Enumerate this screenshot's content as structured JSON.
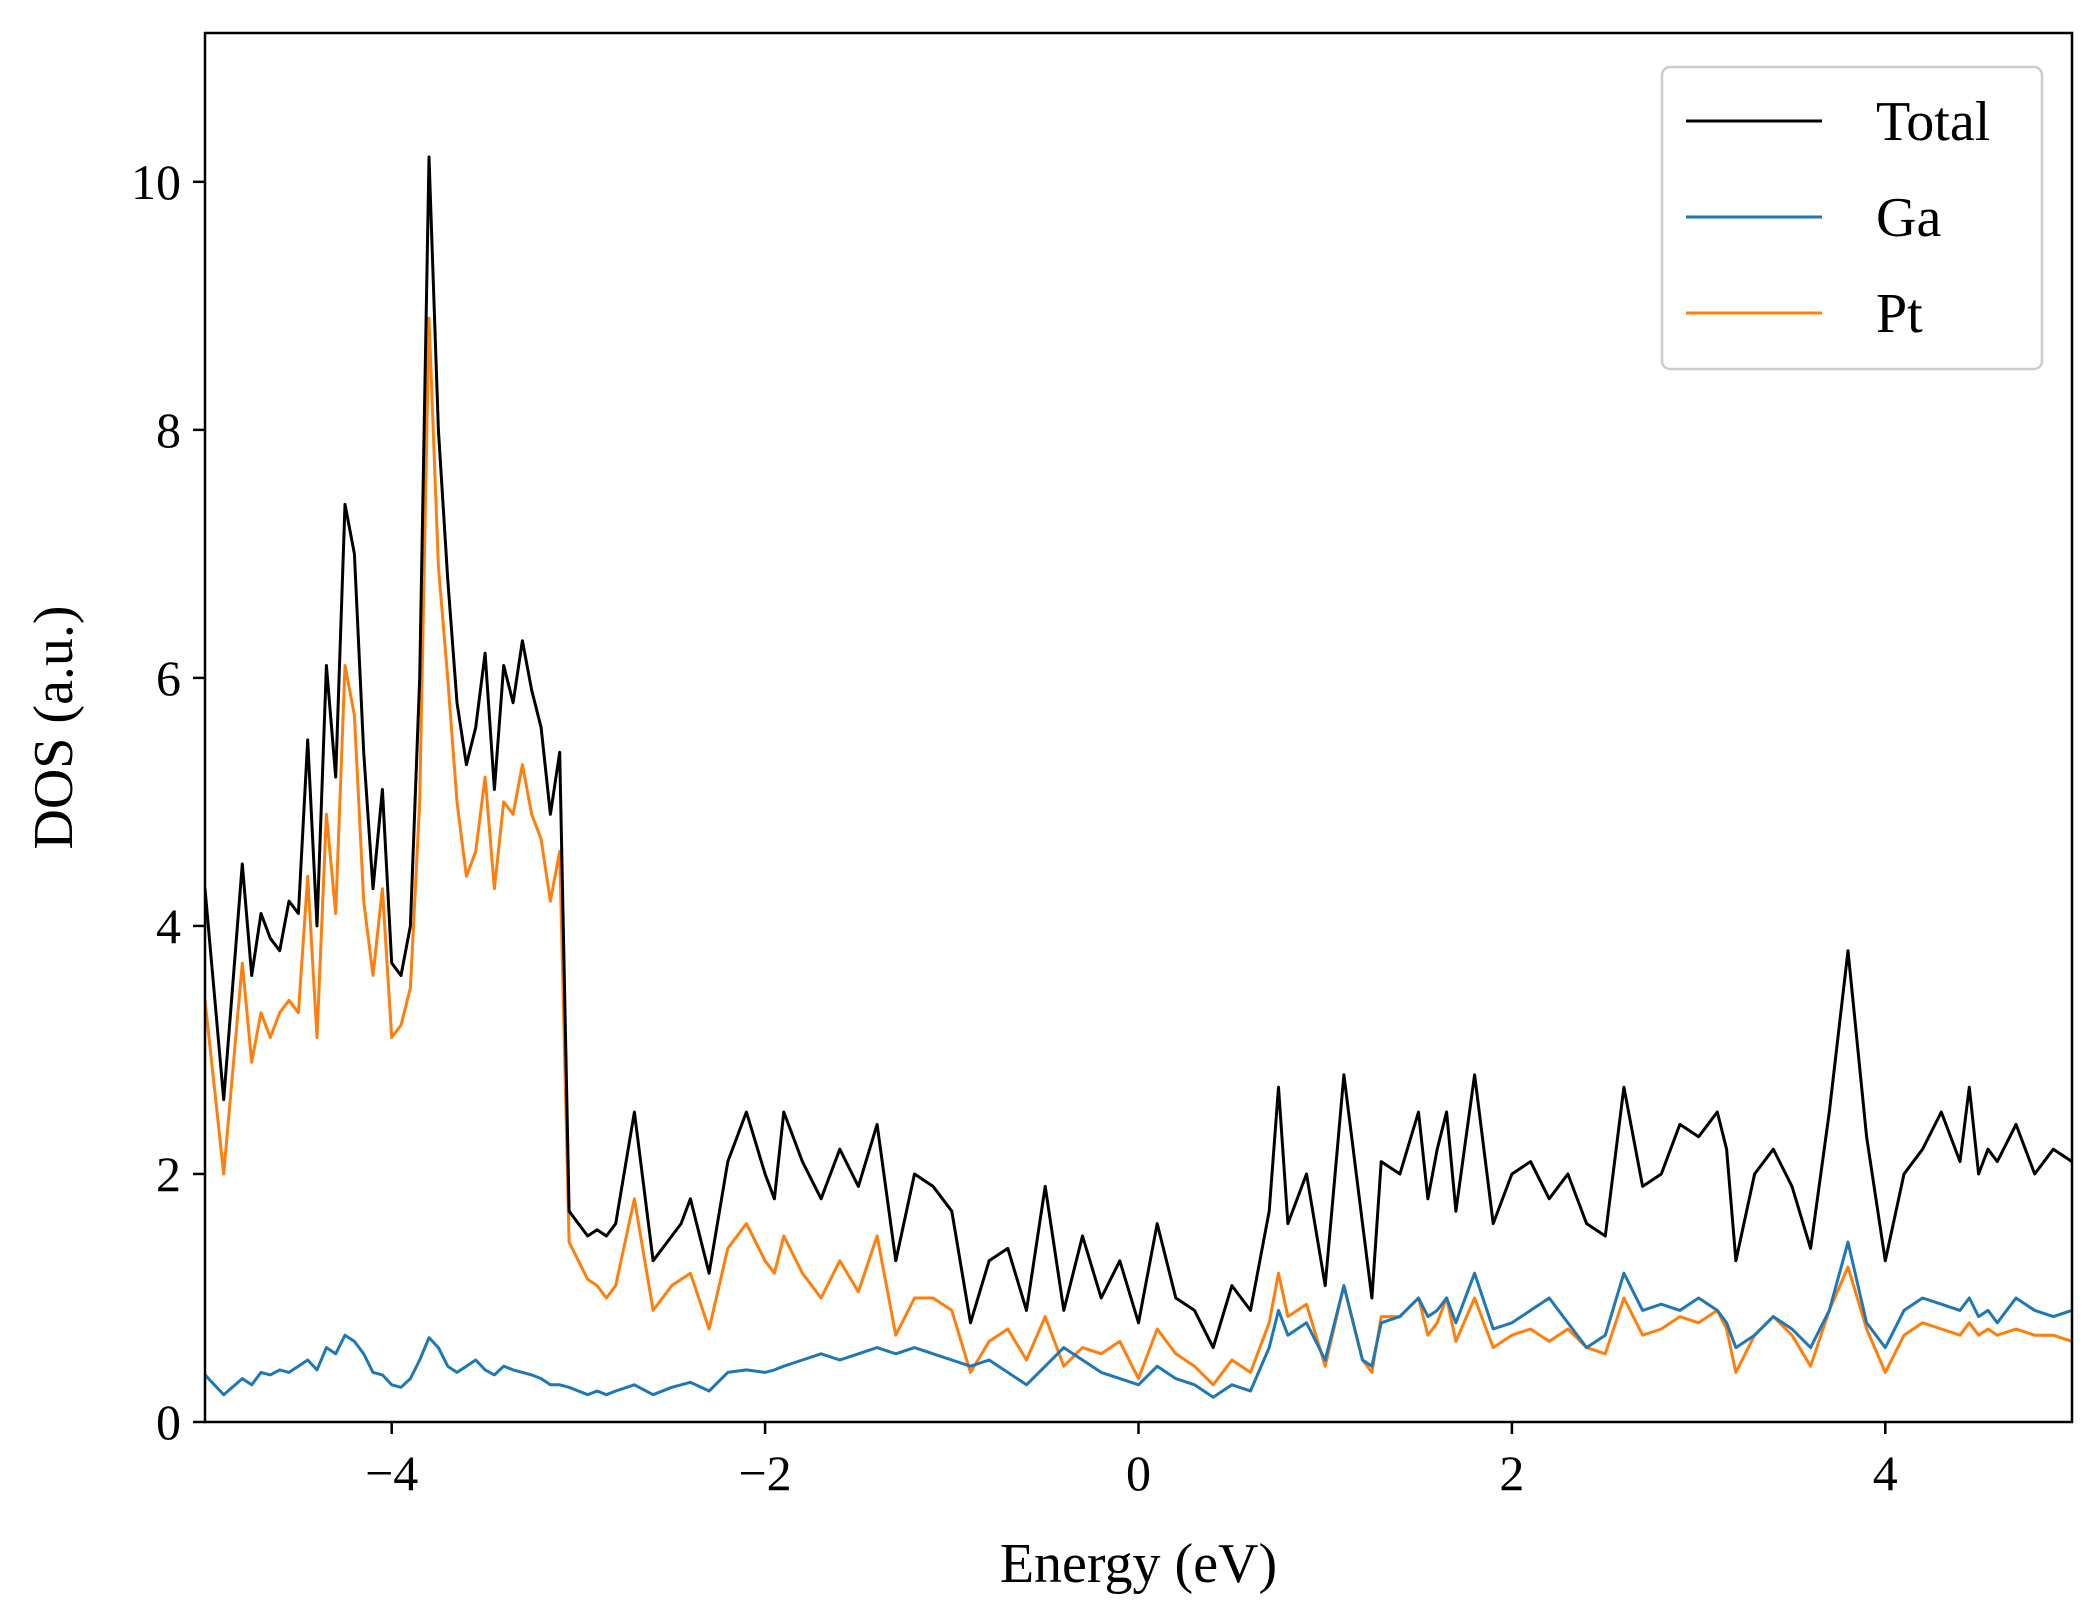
{
  "chart_data": {
    "type": "line",
    "title": "",
    "xlabel": "Energy (eV)",
    "ylabel": "DOS (a.u.)",
    "xlim": [
      -5,
      5
    ],
    "ylim": [
      0,
      11.2
    ],
    "xticks": [
      -4,
      -2,
      0,
      2,
      4
    ],
    "xtick_labels": [
      "−4",
      "−2",
      "0",
      "2",
      "4"
    ],
    "yticks": [
      0,
      2,
      4,
      6,
      8,
      10
    ],
    "ytick_labels": [
      "0",
      "2",
      "4",
      "6",
      "8",
      "10"
    ],
    "grid": false,
    "legend_position": "top-right",
    "x": [
      -5.0,
      -4.9,
      -4.8,
      -4.75,
      -4.7,
      -4.65,
      -4.6,
      -4.55,
      -4.5,
      -4.45,
      -4.4,
      -4.35,
      -4.3,
      -4.25,
      -4.2,
      -4.15,
      -4.1,
      -4.05,
      -4.0,
      -3.95,
      -3.9,
      -3.85,
      -3.8,
      -3.75,
      -3.7,
      -3.65,
      -3.6,
      -3.55,
      -3.5,
      -3.45,
      -3.4,
      -3.35,
      -3.3,
      -3.25,
      -3.2,
      -3.15,
      -3.1,
      -3.05,
      -3.0,
      -2.95,
      -2.9,
      -2.85,
      -2.8,
      -2.7,
      -2.6,
      -2.5,
      -2.45,
      -2.4,
      -2.3,
      -2.2,
      -2.1,
      -2.0,
      -1.95,
      -1.9,
      -1.8,
      -1.7,
      -1.6,
      -1.5,
      -1.4,
      -1.3,
      -1.2,
      -1.1,
      -1.0,
      -0.9,
      -0.8,
      -0.7,
      -0.6,
      -0.5,
      -0.4,
      -0.3,
      -0.2,
      -0.1,
      0.0,
      0.1,
      0.2,
      0.3,
      0.4,
      0.5,
      0.6,
      0.7,
      0.75,
      0.8,
      0.9,
      1.0,
      1.1,
      1.2,
      1.25,
      1.3,
      1.4,
      1.5,
      1.55,
      1.6,
      1.65,
      1.7,
      1.8,
      1.9,
      2.0,
      2.1,
      2.2,
      2.3,
      2.4,
      2.5,
      2.6,
      2.7,
      2.8,
      2.9,
      3.0,
      3.1,
      3.15,
      3.2,
      3.3,
      3.4,
      3.5,
      3.6,
      3.7,
      3.8,
      3.9,
      4.0,
      4.1,
      4.2,
      4.3,
      4.4,
      4.45,
      4.5,
      4.55,
      4.6,
      4.7,
      4.8,
      4.9,
      5.0
    ],
    "series": [
      {
        "name": "Total",
        "color": "#000000",
        "values": [
          4.3,
          2.6,
          4.5,
          3.6,
          4.1,
          3.9,
          3.8,
          4.2,
          4.1,
          5.5,
          4.0,
          6.1,
          5.2,
          7.4,
          7.0,
          5.4,
          4.3,
          5.1,
          3.7,
          3.6,
          4.0,
          6.0,
          10.2,
          8.0,
          6.8,
          5.8,
          5.3,
          5.6,
          6.2,
          5.1,
          6.1,
          5.8,
          6.3,
          5.9,
          5.6,
          4.9,
          5.4,
          1.7,
          1.6,
          1.5,
          1.55,
          1.5,
          1.6,
          2.5,
          1.3,
          1.5,
          1.6,
          1.8,
          1.2,
          2.1,
          2.5,
          2.0,
          1.8,
          2.5,
          2.1,
          1.8,
          2.2,
          1.9,
          2.4,
          1.3,
          2.0,
          1.9,
          1.7,
          0.8,
          1.3,
          1.4,
          0.9,
          1.9,
          0.9,
          1.5,
          1.0,
          1.3,
          0.8,
          1.6,
          1.0,
          0.9,
          0.6,
          1.1,
          0.9,
          1.7,
          2.7,
          1.6,
          2.0,
          1.1,
          2.8,
          1.6,
          1.0,
          2.1,
          2.0,
          2.5,
          1.8,
          2.2,
          2.5,
          1.7,
          2.8,
          1.6,
          2.0,
          2.1,
          1.8,
          2.0,
          1.6,
          1.5,
          2.7,
          1.9,
          2.0,
          2.4,
          2.3,
          2.5,
          2.2,
          1.3,
          2.0,
          2.2,
          1.9,
          1.4,
          2.5,
          3.8,
          2.3,
          1.3,
          2.0,
          2.2,
          2.5,
          2.1,
          2.7,
          2.0,
          2.2,
          2.1,
          2.4,
          2.0,
          2.2,
          2.1
        ]
      },
      {
        "name": "Ga",
        "color": "#1f77b4",
        "values": [
          0.38,
          0.22,
          0.35,
          0.3,
          0.4,
          0.38,
          0.42,
          0.4,
          0.45,
          0.5,
          0.42,
          0.6,
          0.55,
          0.7,
          0.65,
          0.55,
          0.4,
          0.38,
          0.3,
          0.28,
          0.35,
          0.5,
          0.68,
          0.6,
          0.45,
          0.4,
          0.45,
          0.5,
          0.42,
          0.38,
          0.45,
          0.42,
          0.4,
          0.38,
          0.35,
          0.3,
          0.3,
          0.28,
          0.25,
          0.22,
          0.25,
          0.22,
          0.25,
          0.3,
          0.22,
          0.28,
          0.3,
          0.32,
          0.25,
          0.4,
          0.42,
          0.4,
          0.42,
          0.45,
          0.5,
          0.55,
          0.5,
          0.55,
          0.6,
          0.55,
          0.6,
          0.55,
          0.5,
          0.45,
          0.5,
          0.4,
          0.3,
          0.45,
          0.6,
          0.5,
          0.4,
          0.35,
          0.3,
          0.45,
          0.35,
          0.3,
          0.2,
          0.3,
          0.25,
          0.6,
          0.9,
          0.7,
          0.8,
          0.5,
          1.1,
          0.5,
          0.45,
          0.8,
          0.85,
          1.0,
          0.85,
          0.9,
          1.0,
          0.8,
          1.2,
          0.75,
          0.8,
          0.9,
          1.0,
          0.8,
          0.6,
          0.7,
          1.2,
          0.9,
          0.95,
          0.9,
          1.0,
          0.9,
          0.8,
          0.6,
          0.7,
          0.85,
          0.75,
          0.6,
          0.9,
          1.45,
          0.8,
          0.6,
          0.9,
          1.0,
          0.95,
          0.9,
          1.0,
          0.85,
          0.9,
          0.8,
          1.0,
          0.9,
          0.85,
          0.9
        ]
      },
      {
        "name": "Pt",
        "color": "#ff7f0e",
        "values": [
          3.4,
          2.0,
          3.7,
          2.9,
          3.3,
          3.1,
          3.3,
          3.4,
          3.3,
          4.4,
          3.1,
          4.9,
          4.1,
          6.1,
          5.7,
          4.2,
          3.6,
          4.3,
          3.1,
          3.2,
          3.5,
          5.0,
          8.9,
          6.9,
          6.0,
          5.0,
          4.4,
          4.6,
          5.2,
          4.3,
          5.0,
          4.9,
          5.3,
          4.9,
          4.7,
          4.2,
          4.6,
          1.45,
          1.3,
          1.15,
          1.1,
          1.0,
          1.1,
          1.8,
          0.9,
          1.1,
          1.15,
          1.2,
          0.75,
          1.4,
          1.6,
          1.3,
          1.2,
          1.5,
          1.2,
          1.0,
          1.3,
          1.05,
          1.5,
          0.7,
          1.0,
          1.0,
          0.9,
          0.4,
          0.65,
          0.75,
          0.5,
          0.85,
          0.45,
          0.6,
          0.55,
          0.65,
          0.35,
          0.75,
          0.55,
          0.45,
          0.3,
          0.5,
          0.4,
          0.8,
          1.2,
          0.85,
          0.95,
          0.45,
          1.1,
          0.5,
          0.4,
          0.85,
          0.85,
          1.0,
          0.7,
          0.8,
          1.0,
          0.65,
          1.0,
          0.6,
          0.7,
          0.75,
          0.65,
          0.75,
          0.6,
          0.55,
          1.0,
          0.7,
          0.75,
          0.85,
          0.8,
          0.9,
          0.75,
          0.4,
          0.7,
          0.85,
          0.7,
          0.45,
          0.9,
          1.25,
          0.75,
          0.4,
          0.7,
          0.8,
          0.75,
          0.7,
          0.8,
          0.7,
          0.75,
          0.7,
          0.75,
          0.7,
          0.7,
          0.65
        ]
      }
    ]
  }
}
